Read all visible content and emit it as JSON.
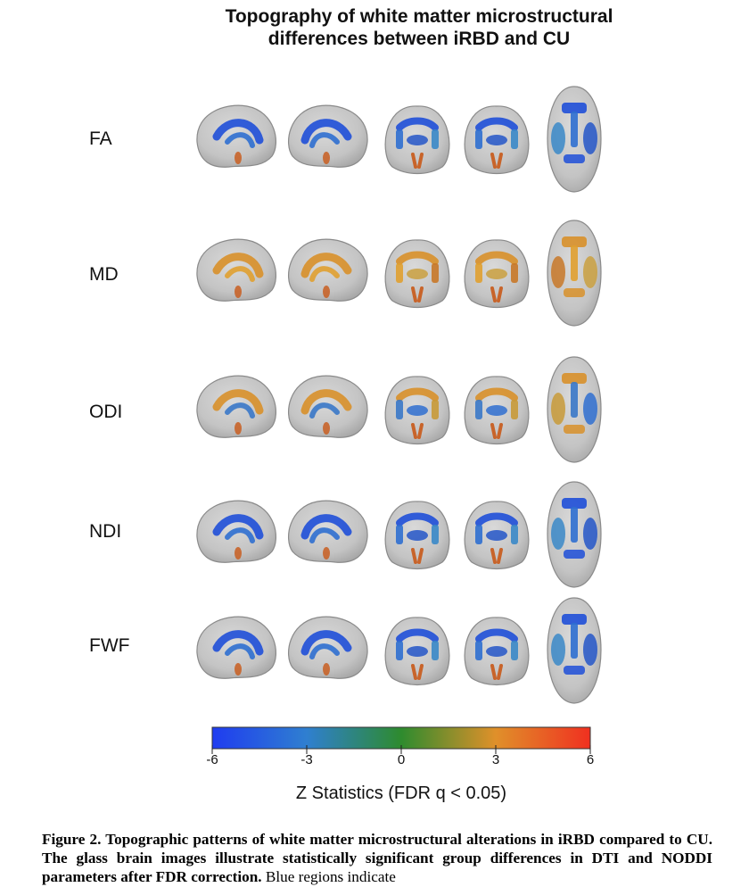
{
  "figure": {
    "title_line1": "Topography of white matter microstructural",
    "title_line2": "differences between iRBD and CU",
    "rows": [
      {
        "label": "FA",
        "dominant": "blue"
      },
      {
        "label": "MD",
        "dominant": "orange"
      },
      {
        "label": "ODI",
        "dominant": "mixed"
      },
      {
        "label": "NDI",
        "dominant": "blue"
      },
      {
        "label": "FWF",
        "dominant": "blue"
      }
    ],
    "views": [
      "sagittal-left",
      "sagittal-right",
      "coronal-anterior",
      "coronal-posterior",
      "axial"
    ],
    "colorbar": {
      "min": -6,
      "max": 6,
      "ticks": [
        "-6",
        "-3",
        "0",
        "3",
        "6"
      ],
      "colors": [
        "#1f3cf0",
        "#2f7fd0",
        "#2e8b2e",
        "#e0902a",
        "#f03020"
      ],
      "label": "Z Statistics (FDR q < 0.05)"
    }
  },
  "caption": {
    "bold_text": "Figure 2. Topographic patterns of white matter microstructural alterations in iRBD compared to CU. The glass brain images illustrate statistically significant group differences in DTI and NODDI parameters after FDR correction.",
    "normal_text": " Blue regions indicate"
  }
}
